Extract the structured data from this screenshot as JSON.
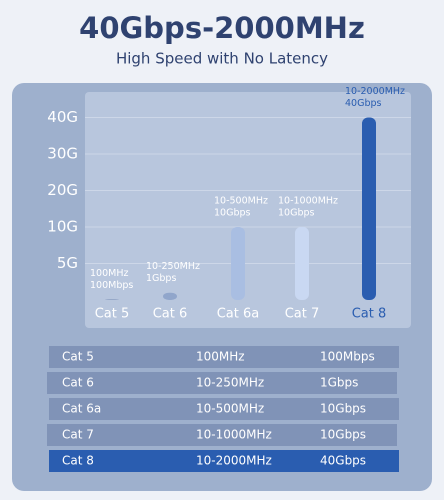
{
  "chart_data": {
    "type": "bar",
    "title": "40Gbps-2000MHz",
    "subtitle": "High Speed with No Latency",
    "categories": [
      "Cat 5",
      "Cat 6",
      "Cat 6a",
      "Cat 7",
      "Cat 8"
    ],
    "values": [
      0.1,
      1,
      10,
      10,
      40
    ],
    "value_labels": [
      "100Mbps",
      "1Gbps",
      "10Gbps",
      "10Gbps",
      "40Gbps"
    ],
    "frequency_labels": [
      "100MHz",
      "10-250MHz",
      "10-500MHz",
      "10-1000MHz",
      "10-2000MHz"
    ],
    "colors": [
      "#8a9dc0",
      "#91a6cb",
      "#a9bee2",
      "#c9d8f2",
      "#2a5db0"
    ],
    "highlight": 4,
    "ylim": [
      0,
      40
    ],
    "yticks": [
      {
        "value": 5,
        "label": "5G"
      },
      {
        "value": 10,
        "label": "10G"
      },
      {
        "value": 20,
        "label": "20G"
      },
      {
        "value": 30,
        "label": "30G"
      },
      {
        "value": 40,
        "label": "40G"
      }
    ],
    "grid": true
  },
  "table": {
    "rows": [
      [
        "Cat 5",
        "100MHz",
        "100Mbps"
      ],
      [
        "Cat 6",
        "10-250MHz",
        "1Gbps"
      ],
      [
        "Cat 6a",
        "10-500MHz",
        "10Gbps"
      ],
      [
        "Cat 7",
        "10-1000MHz",
        "10Gbps"
      ],
      [
        "Cat 8",
        "10-2000MHz",
        "40Gbps"
      ]
    ],
    "highlight": 4
  }
}
